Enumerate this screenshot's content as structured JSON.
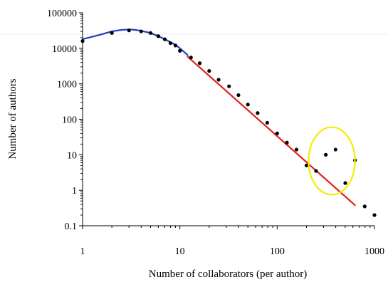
{
  "chart_data": {
    "type": "scatter",
    "title": "",
    "xlabel": "Number of collaborators (per author)",
    "ylabel": "Number of authors",
    "x_scale": "log",
    "y_scale": "log",
    "xlim": [
      1,
      1000
    ],
    "ylim": [
      0.1,
      100000
    ],
    "x_ticks": [
      "1",
      "10",
      "100",
      "1000"
    ],
    "y_ticks": [
      "100000",
      "10000",
      "1000",
      "100",
      "10",
      "1",
      "0.1"
    ],
    "grid": false,
    "legend": "none",
    "series": [
      {
        "kind": "points",
        "color": "#000000",
        "x": [
          1,
          2,
          3,
          4,
          5,
          6,
          7,
          8,
          9,
          10,
          13,
          16,
          20,
          25,
          32,
          40,
          50,
          63,
          79,
          100,
          126,
          158,
          200,
          251,
          316,
          398,
          501,
          631,
          794,
          1000
        ],
        "y": [
          16000,
          27000,
          32000,
          30000,
          27000,
          22000,
          18000,
          14000,
          12000,
          8500,
          5500,
          3800,
          2300,
          1300,
          850,
          480,
          260,
          150,
          80,
          40,
          22,
          14,
          5,
          3.5,
          10,
          14,
          1.6,
          7,
          0.35,
          0.2
        ]
      },
      {
        "kind": "line",
        "color": "#1f3fbf",
        "x": [
          1,
          1.5,
          2,
          2.5,
          3,
          3.5,
          4,
          5,
          6,
          7,
          8,
          9,
          10,
          12
        ],
        "y": [
          18000,
          24000,
          30000,
          33000,
          34000,
          33000,
          31000,
          27000,
          22000,
          18000,
          15000,
          12500,
          10000,
          6500
        ]
      },
      {
        "kind": "line",
        "color": "#e0201a",
        "x": [
          12,
          630
        ],
        "y": [
          5800,
          0.38
        ]
      }
    ],
    "annotations": [
      {
        "kind": "ellipse",
        "color": "#f2ee00",
        "x_range": [
          210,
          630
        ],
        "y_range": [
          0.75,
          60
        ]
      }
    ]
  }
}
